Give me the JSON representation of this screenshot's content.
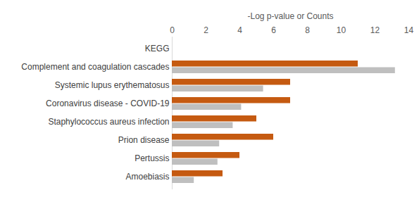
{
  "chart_data": {
    "type": "bar",
    "orientation": "horizontal",
    "xlabel": "-Log p-value or Counts",
    "categories": [
      "KEGG",
      "Complement and coagulation cascades",
      "Systemic lupus erythematosus",
      "Coronavirus disease - COVID-19",
      "Staphylococcus aureus infection",
      "Prion disease",
      "Pertussis",
      "Amoebiasis"
    ],
    "series": [
      {
        "color": "#c55a11",
        "values": [
          null,
          11,
          7,
          7,
          5,
          6,
          4,
          3
        ]
      },
      {
        "color": "#bfbfbf",
        "values": [
          null,
          13.2,
          5.4,
          4.1,
          3.6,
          2.8,
          2.7,
          1.3
        ]
      }
    ],
    "xlim": [
      0,
      14
    ],
    "xticks": [
      0,
      2,
      4,
      6,
      8,
      10,
      12,
      14
    ],
    "grid": false
  }
}
